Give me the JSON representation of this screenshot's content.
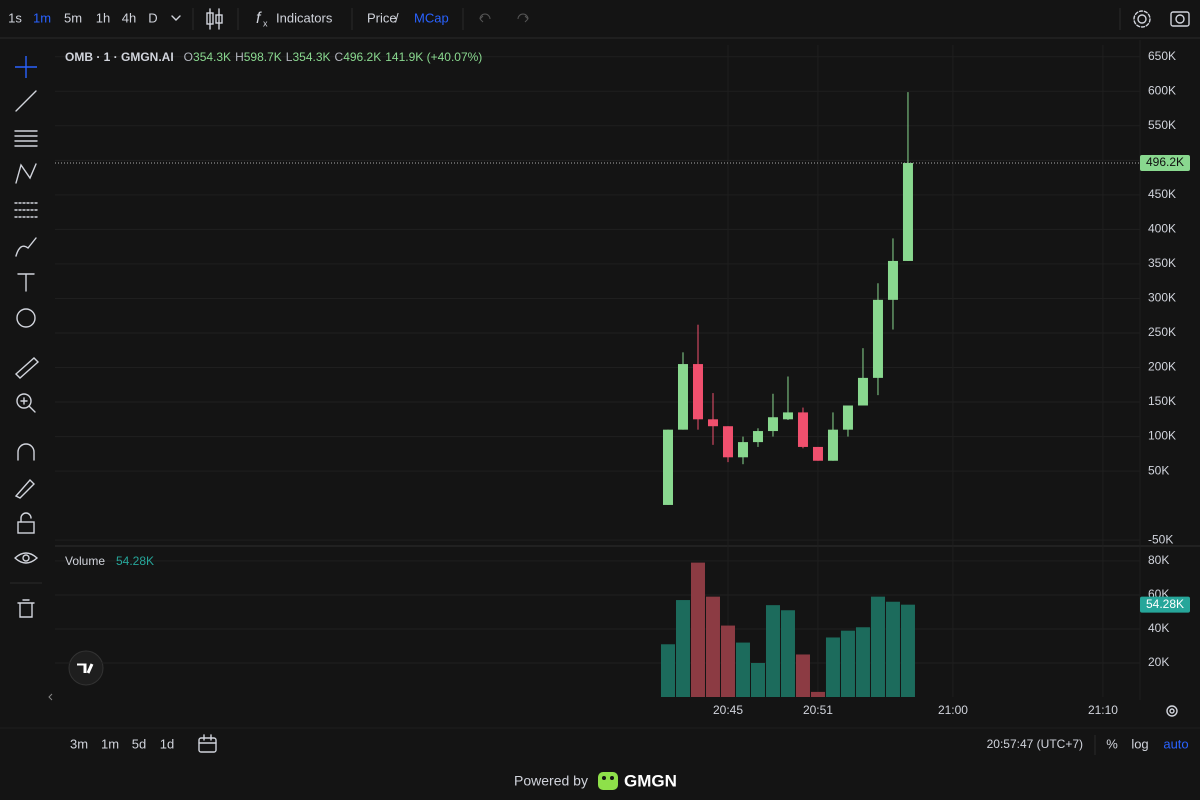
{
  "toolbar": {
    "intervals": [
      "1s",
      "1m",
      "5m",
      "1h",
      "4h",
      "D"
    ],
    "active_interval": 1,
    "indicators": "Indicators",
    "price": "Price",
    "separator": "/",
    "mcap": "MCap"
  },
  "bottom_bar": {
    "ranges": [
      "3m",
      "1m",
      "5d",
      "1d"
    ],
    "clock": "20:57:47 (UTC+7)",
    "percent": "%",
    "log": "log",
    "auto": "auto"
  },
  "footer": {
    "powered_by": "Powered by",
    "brand": "GMGN"
  },
  "chart_data": {
    "type": "candlestick",
    "title": "OMB · 1 · GMGN.AI",
    "legend": [
      {
        "label": "O",
        "value": "354.3K"
      },
      {
        "label": "H",
        "value": "598.7K"
      },
      {
        "label": "L",
        "value": "354.3K"
      },
      {
        "label": "C",
        "value": "496.2K"
      },
      {
        "value": "141.9K (+40.07%)"
      }
    ],
    "open": [
      1,
      110,
      205,
      125,
      115,
      70,
      92,
      108,
      125,
      135,
      85,
      65,
      110,
      145,
      185,
      298,
      354.3
    ],
    "high": [
      110,
      222,
      262,
      163,
      115,
      100,
      112,
      162,
      187,
      142,
      85,
      135,
      145,
      228,
      322,
      387,
      598.7
    ],
    "low": [
      1,
      110,
      110,
      88,
      63,
      60,
      85,
      100,
      124,
      83,
      65,
      65,
      100,
      145,
      160,
      255,
      354.3
    ],
    "close": [
      110,
      205,
      125,
      115,
      70,
      92,
      108,
      128,
      135,
      85,
      65,
      110,
      145,
      185,
      298,
      354.3,
      496.2
    ],
    "color_up": "#89d88f",
    "color_down": "#f0506e",
    "last_label": "496.2K",
    "xlim": [
      -40.87,
      31.47
    ],
    "xticks": [
      {
        "value": 4,
        "label": "20:45"
      },
      {
        "value": 10,
        "label": "20:51"
      },
      {
        "value": 19,
        "label": "21:00"
      },
      {
        "value": 29,
        "label": "21:10"
      }
    ],
    "ylim": [
      -57,
      667
    ],
    "yticks": [
      {
        "value": -50,
        "label": "-50K"
      },
      {
        "value": 50,
        "label": "50K"
      },
      {
        "value": 100,
        "label": "100K"
      },
      {
        "value": 150,
        "label": "150K"
      },
      {
        "value": 200,
        "label": "200K"
      },
      {
        "value": 250,
        "label": "250K"
      },
      {
        "value": 300,
        "label": "300K"
      },
      {
        "value": 350,
        "label": "350K"
      },
      {
        "value": 400,
        "label": "400K"
      },
      {
        "value": 450,
        "label": "450K"
      },
      {
        "value": 500,
        "label": "500K"
      },
      {
        "value": 550,
        "label": "550K"
      },
      {
        "value": 600,
        "label": "600K"
      },
      {
        "value": 650,
        "label": "650K"
      }
    ],
    "grid": true,
    "volume": {
      "name": "Volume",
      "values": [
        31,
        57,
        79,
        59,
        42,
        32,
        20,
        54,
        51,
        25,
        3,
        35,
        39,
        41,
        59,
        56,
        54.28
      ],
      "last_label": "54.28K",
      "color_up": "#1c6b5c",
      "color_down": "#8c3b43",
      "ylim": [
        0,
        87.6
      ],
      "yticks": [
        {
          "value": 20,
          "label": "20K"
        },
        {
          "value": 40,
          "label": "40K"
        },
        {
          "value": 60,
          "label": "60K"
        },
        {
          "value": 80,
          "label": "80K"
        }
      ]
    }
  }
}
